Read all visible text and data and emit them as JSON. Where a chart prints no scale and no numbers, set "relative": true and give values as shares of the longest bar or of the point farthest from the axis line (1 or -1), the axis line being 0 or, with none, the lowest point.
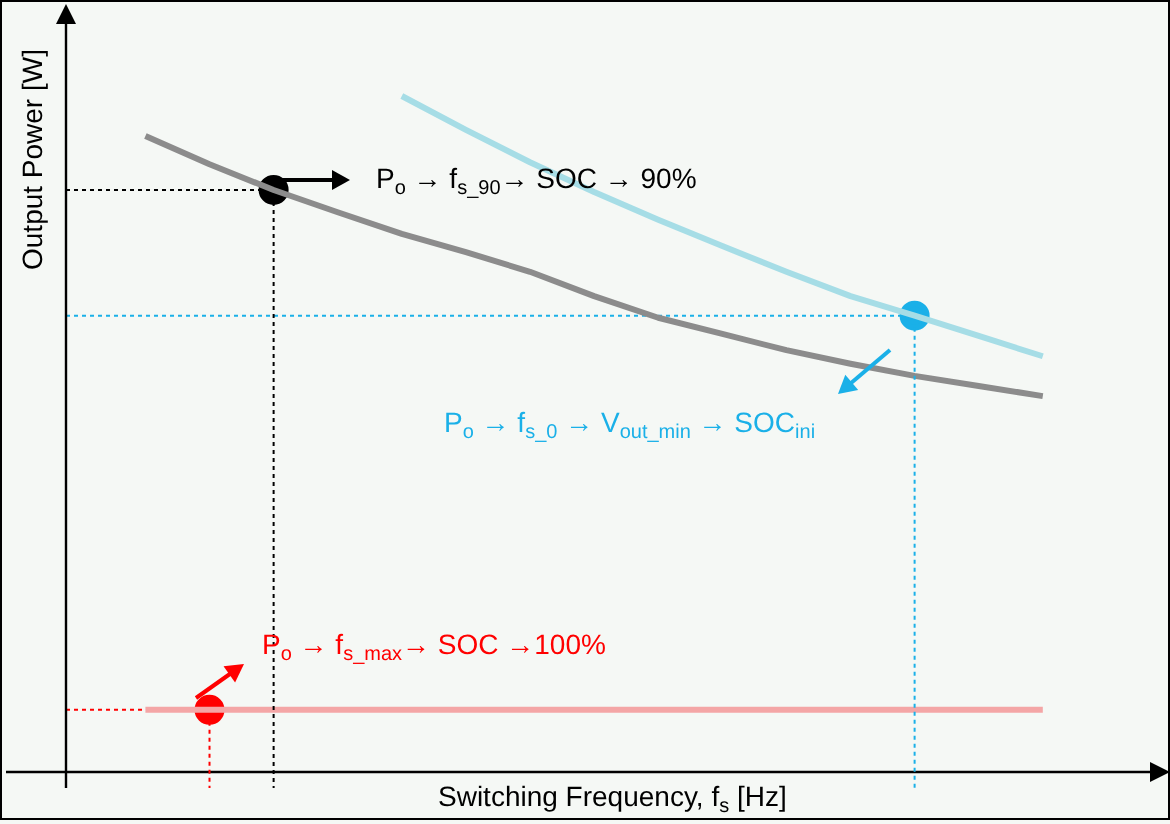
{
  "chart_data": {
    "type": "line",
    "relative": true,
    "xlabel": "Switching Frequency, f$_{s}$ [Hz]",
    "ylabel": "Output Power [W]",
    "categories": [
      null,
      null,
      null,
      null,
      null,
      null,
      null,
      null,
      null,
      null,
      null,
      null,
      null,
      null,
      null
    ],
    "series": [
      {
        "color": "#8c8c8c",
        "values": [
          0.941,
          0.899,
          0.861,
          0.828,
          0.796,
          0.769,
          0.74,
          0.704,
          0.672,
          0.648,
          0.624,
          0.604,
          0.586,
          0.571,
          0.556
        ]
      },
      {
        "color": "#a6dde6",
        "values": [
          null,
          null,
          null,
          null,
          1,
          0.95,
          0.902,
          0.858,
          0.817,
          0.778,
          0.74,
          0.704,
          0.675,
          0.645,
          0.615
        ]
      },
      {
        "color": "#f4a6a6",
        "values": [
          0.092,
          0.092,
          0.092,
          0.092,
          0.092,
          0.092,
          0.092,
          0.092,
          0.092,
          0.092,
          0.092,
          0.092,
          0.092,
          0.092,
          0.092
        ]
      },
      {
        "marker": "circle",
        "color": "#000000",
        "values": [
          null,
          null,
          0.861,
          null,
          null,
          null,
          null,
          null,
          null,
          null,
          null,
          null,
          null,
          null,
          null
        ]
      },
      {
        "marker": "circle",
        "color": "#1ab0e8",
        "values": [
          null,
          null,
          null,
          null,
          null,
          null,
          null,
          null,
          null,
          null,
          null,
          null,
          0.675,
          null,
          null
        ]
      },
      {
        "marker": "circle",
        "color": "#ff0000",
        "values": [
          null,
          0.092,
          null,
          null,
          null,
          null,
          null,
          null,
          null,
          null,
          null,
          null,
          null,
          null,
          null
        ]
      }
    ],
    "ref_lines": [
      {
        "axis": "y",
        "value": 0.861,
        "color": "#000000",
        "line_style": "dotted"
      },
      {
        "axis": "y",
        "value": 0.675,
        "color": "#1ab0e8",
        "line_style": "dotted"
      },
      {
        "axis": "y",
        "value": 0.092,
        "color": "#ff0000",
        "line_style": "dotted"
      }
    ],
    "annotations": [
      "P$_{o}$ → f$_{s_90}$→ SOC →  90%",
      "P$_{o}$ → f$_{s_0}$ → V$_{out_min}$ → SOC$_{ini}$",
      "P$_{o}$ → f$_{s_max}$→ SOC →100%"
    ]
  }
}
